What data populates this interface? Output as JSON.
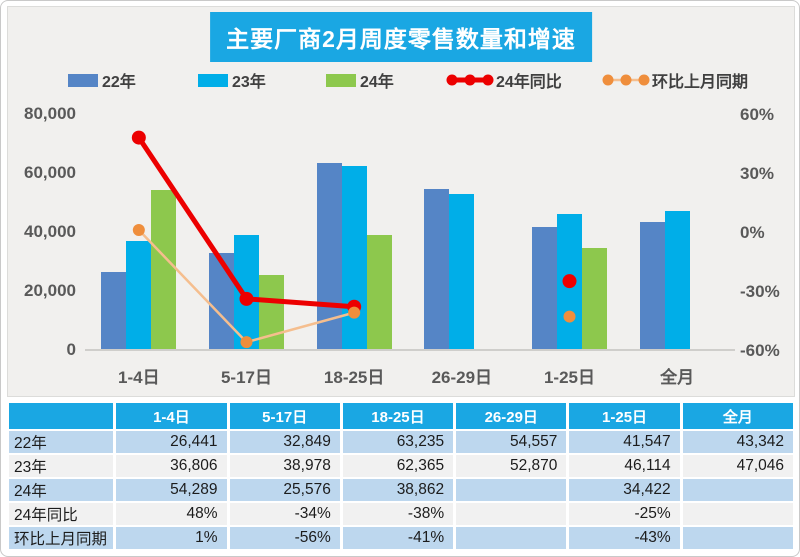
{
  "title": "主要厂商2月周度零售数量和增速",
  "chart_data": {
    "type": "bar+line combo",
    "title": "主要厂商2月周度零售数量和增速",
    "categories": [
      "1-4日",
      "5-17日",
      "18-25日",
      "26-29日",
      "1-25日",
      "全月"
    ],
    "series": [
      {
        "name": "22年",
        "type": "bar",
        "color": "#5585c6",
        "values": [
          26441,
          32849,
          63235,
          54557,
          41547,
          43342
        ]
      },
      {
        "name": "23年",
        "type": "bar",
        "color": "#00aee8",
        "values": [
          36806,
          38978,
          62365,
          52870,
          46114,
          47046
        ]
      },
      {
        "name": "24年",
        "type": "bar",
        "color": "#8dc84d",
        "values": [
          54289,
          25576,
          38862,
          null,
          34422,
          null
        ]
      },
      {
        "name": "24年同比",
        "type": "line",
        "color": "#ec0000",
        "marker_color": "#ec0000",
        "line_width": 5,
        "marker_r": 7,
        "values": [
          48,
          -34,
          -38,
          null,
          -25,
          null
        ],
        "unit": "%"
      },
      {
        "name": "环比上月同期",
        "type": "line",
        "color": "#f5be8e",
        "marker_color": "#ef8e3c",
        "line_width": 2.5,
        "marker_r": 6,
        "values": [
          1,
          -56,
          -41,
          null,
          -43,
          null
        ],
        "unit": "%"
      }
    ],
    "left_axis": {
      "min": 0,
      "max": 80000,
      "tick_labels": [
        "80,000",
        "60,000",
        "40,000",
        "20,000",
        "0"
      ]
    },
    "right_axis": {
      "min": -60,
      "max": 60,
      "tick_labels": [
        "60%",
        "30%",
        "0%",
        "-30%",
        "-60%"
      ]
    },
    "grid": false,
    "legend_position": "top"
  },
  "table": {
    "header": [
      "",
      "1-4日",
      "5-17日",
      "18-25日",
      "26-29日",
      "1-25日",
      "全月"
    ],
    "rows": [
      {
        "label": "22年",
        "cells": [
          "26,441",
          "32,849",
          "63,235",
          "54,557",
          "41,547",
          "43,342"
        ]
      },
      {
        "label": "23年",
        "cells": [
          "36,806",
          "38,978",
          "62,365",
          "52,870",
          "46,114",
          "47,046"
        ]
      },
      {
        "label": "24年",
        "cells": [
          "54,289",
          "25,576",
          "38,862",
          "",
          "34,422",
          ""
        ]
      },
      {
        "label": "24年同比",
        "cells": [
          "48%",
          "-34%",
          "-38%",
          "",
          "-25%",
          ""
        ]
      },
      {
        "label": "环比上月同期",
        "cells": [
          "1%",
          "-56%",
          "-41%",
          "",
          "-43%",
          ""
        ]
      }
    ]
  },
  "colors": {
    "accent_cyan": "#1aa7e3",
    "row_blue": "#bdd7ee",
    "row_gray": "#f1f1f1",
    "panel_bg": "#f1f0ee",
    "axis_text": "#595959"
  }
}
